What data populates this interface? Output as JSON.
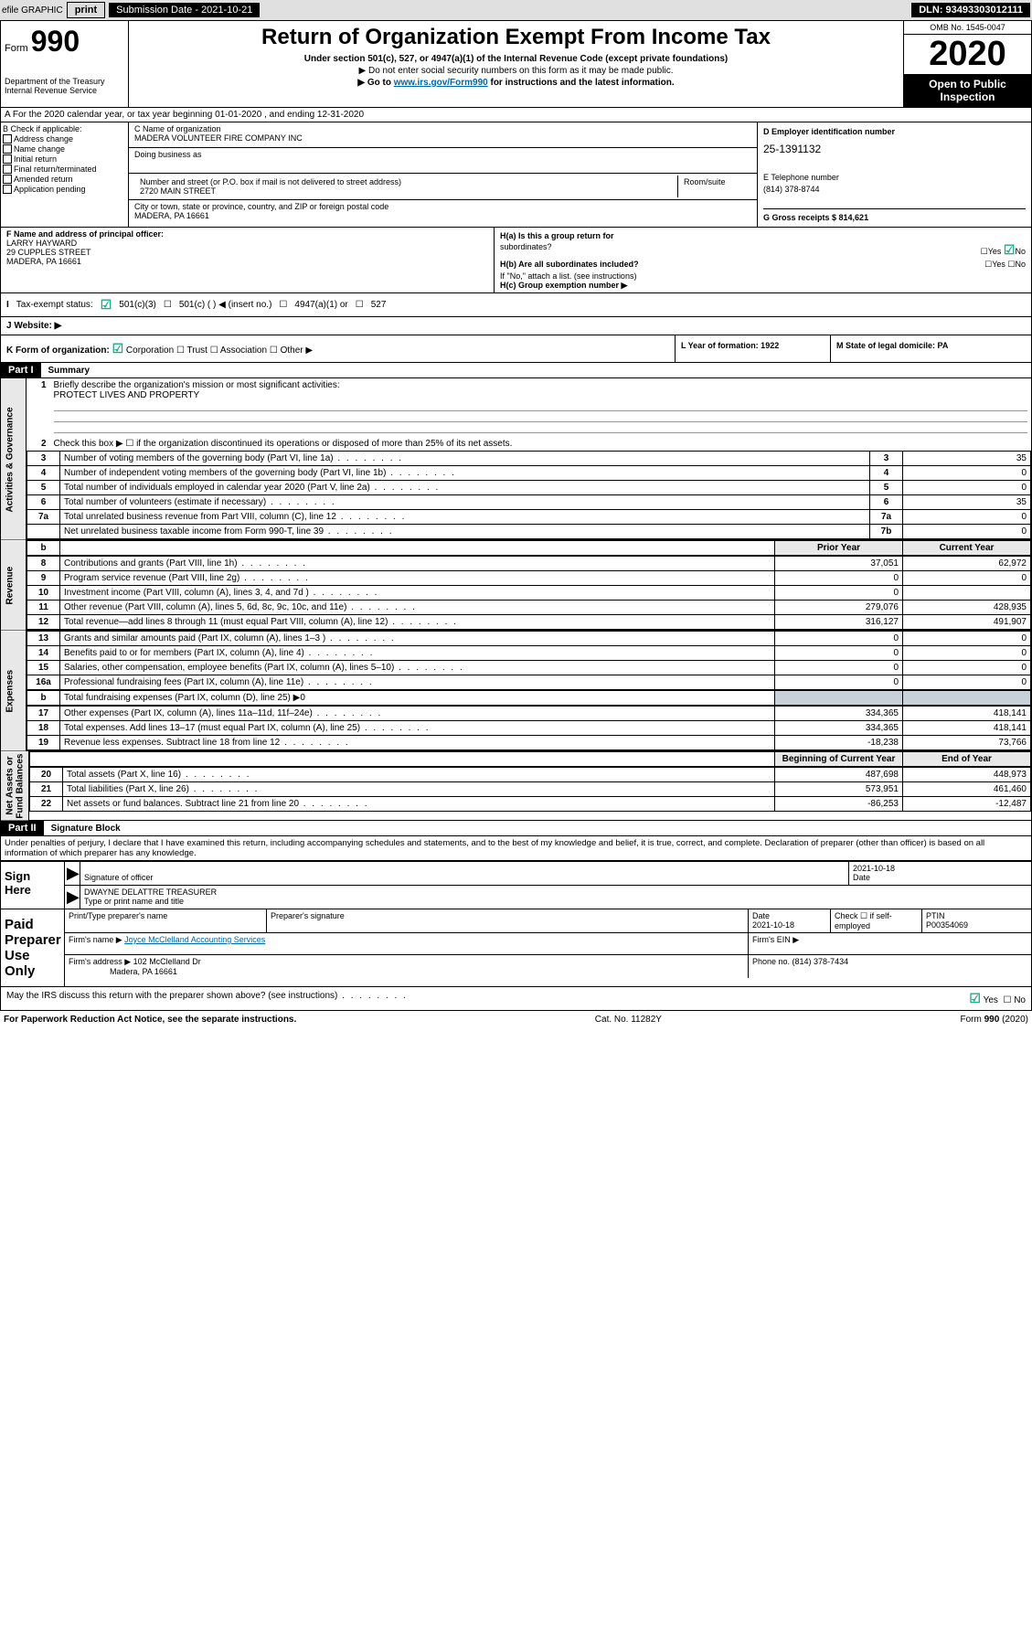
{
  "header": {
    "efile_label": "efile GRAPHIC",
    "print": "print",
    "sub_date_label": "Submission Date - 2021-10-21",
    "dln": "DLN: 93493303012111"
  },
  "form_top": {
    "form_label": "Form",
    "form_num": "990",
    "dept": "Department of the Treasury\nInternal Revenue Service",
    "title": "Return of Organization Exempt From Income Tax",
    "subtitle": "Under section 501(c), 527, or 4947(a)(1) of the Internal Revenue Code (except private foundations)",
    "note1": "▶ Do not enter social security numbers on this form as it may be made public.",
    "note2_pre": "▶ Go to ",
    "note2_link": "www.irs.gov/Form990",
    "note2_post": " for instructions and the latest information.",
    "omb": "OMB No. 1545-0047",
    "year": "2020",
    "open": "Open to Public\nInspection"
  },
  "row_a": "A For the 2020 calendar year, or tax year beginning 01-01-2020    , and ending 12-31-2020",
  "col_b": {
    "label": "B Check if applicable:",
    "items": [
      "Address change",
      "Name change",
      "Initial return",
      "Final return/terminated",
      "Amended return",
      "Application pending"
    ]
  },
  "col_c": {
    "name_label": "C Name of organization",
    "name": "MADERA VOLUNTEER FIRE COMPANY INC",
    "dba_label": "Doing business as",
    "addr_label": "Number and street (or P.O. box if mail is not delivered to street address)",
    "room_label": "Room/suite",
    "addr": "2720 MAIN STREET",
    "city_label": "City or town, state or province, country, and ZIP or foreign postal code",
    "city": "MADERA, PA  16661"
  },
  "col_d": {
    "ein_label": "D Employer identification number",
    "ein": "25-1391132",
    "phone_label": "E Telephone number",
    "phone": "(814) 378-8744",
    "gross_label": "G Gross receipts $ 814,621"
  },
  "col_f": {
    "label": "F  Name and address of principal officer:",
    "name": "LARRY HAYWARD",
    "addr1": "29 CUPPLES STREET",
    "addr2": "MADERA, PA  16661"
  },
  "col_h": {
    "ha_label": "H(a)  Is this a group return for",
    "ha_sub": "subordinates?",
    "hb_label": "H(b)  Are all subordinates included?",
    "hb_note": "If \"No,\" attach a list. (see instructions)",
    "hc_label": "H(c)  Group exemption number ▶",
    "yes": "Yes",
    "no": "No"
  },
  "tax_status": {
    "label": "Tax-exempt status:",
    "opt1": "501(c)(3)",
    "opt2": "501(c) (  ) ◀ (insert no.)",
    "opt3": "4947(a)(1) or",
    "opt4": "527"
  },
  "website": {
    "label": "J    Website: ▶"
  },
  "kl": {
    "k_label": "K Form of organization:",
    "k_opts": [
      "Corporation",
      "Trust",
      "Association",
      "Other ▶"
    ],
    "l_label": "L Year of formation: 1922",
    "m_label": "M State of legal domicile: PA"
  },
  "part1": {
    "hdr": "Part I",
    "title": "Summary"
  },
  "summary_top": {
    "l1": "Briefly describe the organization's mission or most significant activities:",
    "l1v": "PROTECT LIVES AND PROPERTY",
    "l2": "Check this box ▶ ☐  if the organization discontinued its operations or disposed of more than 25% of its net assets."
  },
  "gov_rows": [
    {
      "n": "3",
      "d": "Number of voting members of the governing body (Part VI, line 1a)",
      "box": "3",
      "v": "35"
    },
    {
      "n": "4",
      "d": "Number of independent voting members of the governing body (Part VI, line 1b)",
      "box": "4",
      "v": "0"
    },
    {
      "n": "5",
      "d": "Total number of individuals employed in calendar year 2020 (Part V, line 2a)",
      "box": "5",
      "v": "0"
    },
    {
      "n": "6",
      "d": "Total number of volunteers (estimate if necessary)",
      "box": "6",
      "v": "35"
    },
    {
      "n": "7a",
      "d": "Total unrelated business revenue from Part VIII, column (C), line 12",
      "box": "7a",
      "v": "0"
    },
    {
      "n": "",
      "d": "Net unrelated business taxable income from Form 990-T, line 39",
      "box": "7b",
      "v": "0"
    }
  ],
  "col_hdrs": {
    "b": "b",
    "prior": "Prior Year",
    "current": "Current Year"
  },
  "rev_rows": [
    {
      "n": "8",
      "d": "Contributions and grants (Part VIII, line 1h)",
      "p": "37,051",
      "c": "62,972"
    },
    {
      "n": "9",
      "d": "Program service revenue (Part VIII, line 2g)",
      "p": "0",
      "c": "0"
    },
    {
      "n": "10",
      "d": "Investment income (Part VIII, column (A), lines 3, 4, and 7d )",
      "p": "0",
      "c": ""
    },
    {
      "n": "11",
      "d": "Other revenue (Part VIII, column (A), lines 5, 6d, 8c, 9c, 10c, and 11e)",
      "p": "279,076",
      "c": "428,935"
    },
    {
      "n": "12",
      "d": "Total revenue—add lines 8 through 11 (must equal Part VIII, column (A), line 12)",
      "p": "316,127",
      "c": "491,907"
    }
  ],
  "exp_rows": [
    {
      "n": "13",
      "d": "Grants and similar amounts paid (Part IX, column (A), lines 1–3 )",
      "p": "0",
      "c": "0"
    },
    {
      "n": "14",
      "d": "Benefits paid to or for members (Part IX, column (A), line 4)",
      "p": "0",
      "c": "0"
    },
    {
      "n": "15",
      "d": "Salaries, other compensation, employee benefits (Part IX, column (A), lines 5–10)",
      "p": "0",
      "c": "0"
    },
    {
      "n": "16a",
      "d": "Professional fundraising fees (Part IX, column (A), line 11e)",
      "p": "0",
      "c": "0"
    }
  ],
  "exp_b": {
    "n": "b",
    "d": "Total fundraising expenses (Part IX, column (D), line 25) ▶0"
  },
  "exp_rows2": [
    {
      "n": "17",
      "d": "Other expenses (Part IX, column (A), lines 11a–11d, 11f–24e)",
      "p": "334,365",
      "c": "418,141"
    },
    {
      "n": "18",
      "d": "Total expenses. Add lines 13–17 (must equal Part IX, column (A), line 25)",
      "p": "334,365",
      "c": "418,141"
    },
    {
      "n": "19",
      "d": "Revenue less expenses. Subtract line 18 from line 12",
      "p": "-18,238",
      "c": "73,766"
    }
  ],
  "net_hdrs": {
    "begin": "Beginning of Current Year",
    "end": "End of Year"
  },
  "net_rows": [
    {
      "n": "20",
      "d": "Total assets (Part X, line 16)",
      "p": "487,698",
      "c": "448,973"
    },
    {
      "n": "21",
      "d": "Total liabilities (Part X, line 26)",
      "p": "573,951",
      "c": "461,460"
    },
    {
      "n": "22",
      "d": "Net assets or fund balances. Subtract line 21 from line 20",
      "p": "-86,253",
      "c": "-12,487"
    }
  ],
  "side_labels": {
    "gov": "Activities & Governance",
    "rev": "Revenue",
    "exp": "Expenses",
    "net": "Net Assets or\nFund Balances"
  },
  "part2": {
    "hdr": "Part II",
    "title": "Signature Block"
  },
  "perjury": "Under penalties of perjury, I declare that I have examined this return, including accompanying schedules and statements, and to the best of my knowledge and belief, it is true, correct, and complete. Declaration of preparer (other than officer) is based on all information of which preparer has any knowledge.",
  "sign": {
    "label": "Sign\nHere",
    "sig_label": "Signature of officer",
    "date": "2021-10-18",
    "date_label": "Date",
    "name": "DWAYNE DELATTRE TREASURER",
    "name_label": "Type or print name and title"
  },
  "paid": {
    "label": "Paid\nPreparer\nUse Only",
    "r1c1": "Print/Type preparer's name",
    "r1c2": "Preparer's signature",
    "r1c3": "Date\n2021-10-18",
    "r1c4": "Check ☐ if self-employed",
    "r1c5": "PTIN\nP00354069",
    "r2c1": "Firm's name    ▶",
    "r2c1v": "Joyce McClelland Accounting Services",
    "r2c2": "Firm's EIN ▶",
    "r3c1": "Firm's address ▶",
    "r3c1v": "102 McClelland Dr",
    "r3c1v2": "Madera, PA  16661",
    "r3c2": "Phone no. (814) 378-7434"
  },
  "discuss": "May the IRS discuss this return with the preparer shown above? (see instructions)",
  "footer": {
    "left": "For Paperwork Reduction Act Notice, see the separate instructions.",
    "mid": "Cat. No. 11282Y",
    "right": "Form 990 (2020)"
  }
}
